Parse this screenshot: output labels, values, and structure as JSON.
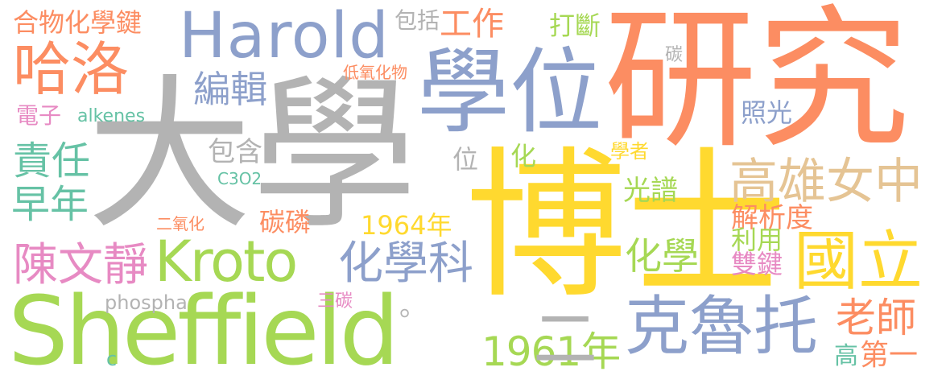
{
  "colors": {
    "gray": "#b3b3b3",
    "orange": "#fc8d62",
    "blue": "#8da0cb",
    "pink": "#e78ac3",
    "green": "#a6d854",
    "yellow": "#ffd92f",
    "tan": "#e5c494",
    "teal": "#66c2a5"
  },
  "words": {
    "w01": "大學",
    "w02": "博士",
    "w03": "研究",
    "w04": "學位",
    "w05": "Sheffield",
    "w06": "Harold",
    "w07": "Kroto",
    "w08": "哈洛",
    "w09": "克魯托",
    "w10": "化學科",
    "w11": "陳文靜",
    "w12": "國立",
    "w13": "高雄女中",
    "w14": "編輯",
    "w15": "責任",
    "w16": "早年",
    "w17": "合物化學鍵",
    "w18": "工作",
    "w19": "包括",
    "w20": "打斷",
    "w21": "老師",
    "w22": "1961年",
    "w23": "1964年",
    "w24": "化學",
    "w25": "光譜",
    "w26": "解析度",
    "w27": "利用",
    "w28": "雙鍵",
    "w29": "第一",
    "w30": "高",
    "w31": "照光",
    "w32": "學者",
    "w33": "碳",
    "w34": "碳磷",
    "w35": "電子",
    "w36": "alkenes",
    "w37": "包含",
    "w38": "位",
    "w39": "化",
    "w40": "C3O2",
    "w41": "二氧化",
    "w42": "低氧化物",
    "w43": "phospha",
    "w44": "三碳",
    "w45": "。",
    "w46": "c",
    "w47": "二"
  }
}
